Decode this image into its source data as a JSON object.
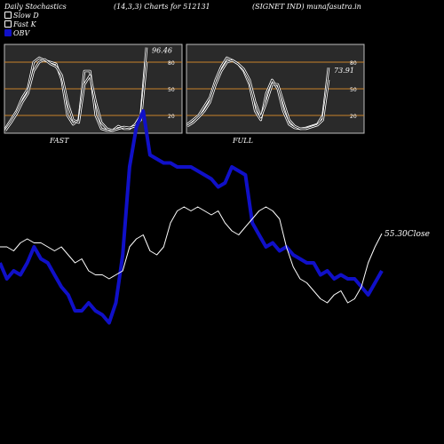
{
  "header": {
    "title": "Daily Stochastics",
    "params": "(14,3,3) Charts for 512131",
    "company": "(SIGNET IND) munafasutra.in"
  },
  "legend": {
    "slow": "Slow  D",
    "fast": "Fast K",
    "obv": "OBV"
  },
  "colors": {
    "background": "#000000",
    "panel": "#2a2a2a",
    "band": "#c8812a",
    "line": "#ffffff",
    "obv": "#1010c8"
  },
  "chart_data": [
    {
      "type": "line",
      "name": "FAST",
      "ylim": [
        0,
        100
      ],
      "yticks": [
        20,
        50,
        80
      ],
      "bands": [
        20,
        50,
        80
      ],
      "last_label": "96.46",
      "series": [
        {
          "name": "Fast K",
          "values": [
            5,
            15,
            25,
            40,
            50,
            80,
            85,
            82,
            80,
            78,
            60,
            20,
            10,
            15,
            70,
            70,
            20,
            5,
            3,
            3,
            8,
            5,
            5,
            10,
            20,
            96.46
          ]
        },
        {
          "name": "Slow  D",
          "values": [
            3,
            12,
            22,
            35,
            45,
            70,
            80,
            83,
            78,
            75,
            65,
            35,
            15,
            12,
            55,
            65,
            35,
            12,
            5,
            3,
            5,
            7,
            6,
            8,
            15,
            80
          ]
        }
      ]
    },
    {
      "type": "line",
      "name": "FULL",
      "ylim": [
        0,
        100
      ],
      "yticks": [
        20,
        50,
        80
      ],
      "bands": [
        20,
        50,
        80
      ],
      "last_label": "73.91",
      "series": [
        {
          "name": "Fast K",
          "values": [
            10,
            15,
            20,
            30,
            40,
            60,
            75,
            85,
            82,
            78,
            70,
            55,
            25,
            15,
            45,
            60,
            50,
            25,
            10,
            6,
            5,
            6,
            8,
            10,
            20,
            73.91
          ]
        },
        {
          "name": "Slow  D",
          "values": [
            8,
            12,
            18,
            25,
            35,
            55,
            70,
            80,
            82,
            78,
            72,
            60,
            35,
            18,
            35,
            55,
            55,
            35,
            15,
            8,
            5,
            5,
            7,
            9,
            15,
            60
          ]
        }
      ]
    },
    {
      "type": "line",
      "name": "Price and OBV",
      "last_label": "55.30Close",
      "series": [
        {
          "name": "Close",
          "values": [
            52,
            52,
            51,
            53,
            54,
            53,
            53,
            52,
            51,
            52,
            50,
            48,
            49,
            46,
            45,
            45,
            44,
            45,
            46,
            52,
            54,
            55,
            51,
            50,
            52,
            58,
            61,
            62,
            61,
            62,
            61,
            60,
            61,
            58,
            56,
            55,
            57,
            59,
            61,
            62,
            61,
            59,
            52,
            47,
            44,
            43,
            41,
            39,
            38,
            40,
            41,
            38,
            39,
            42,
            48,
            52,
            55.3
          ]
        },
        {
          "name": "OBV",
          "values": [
            48,
            44,
            46,
            45,
            48,
            52,
            49,
            48,
            45,
            42,
            40,
            36,
            36,
            38,
            36,
            35,
            33,
            38,
            50,
            72,
            82,
            86,
            75,
            74,
            73,
            73,
            72,
            72,
            72,
            71,
            70,
            69,
            67,
            68,
            72,
            71,
            70,
            58,
            55,
            52,
            53,
            51,
            52,
            50,
            49,
            48,
            48,
            45,
            46,
            44,
            45,
            44,
            44,
            42,
            40,
            43,
            46
          ]
        }
      ]
    }
  ]
}
